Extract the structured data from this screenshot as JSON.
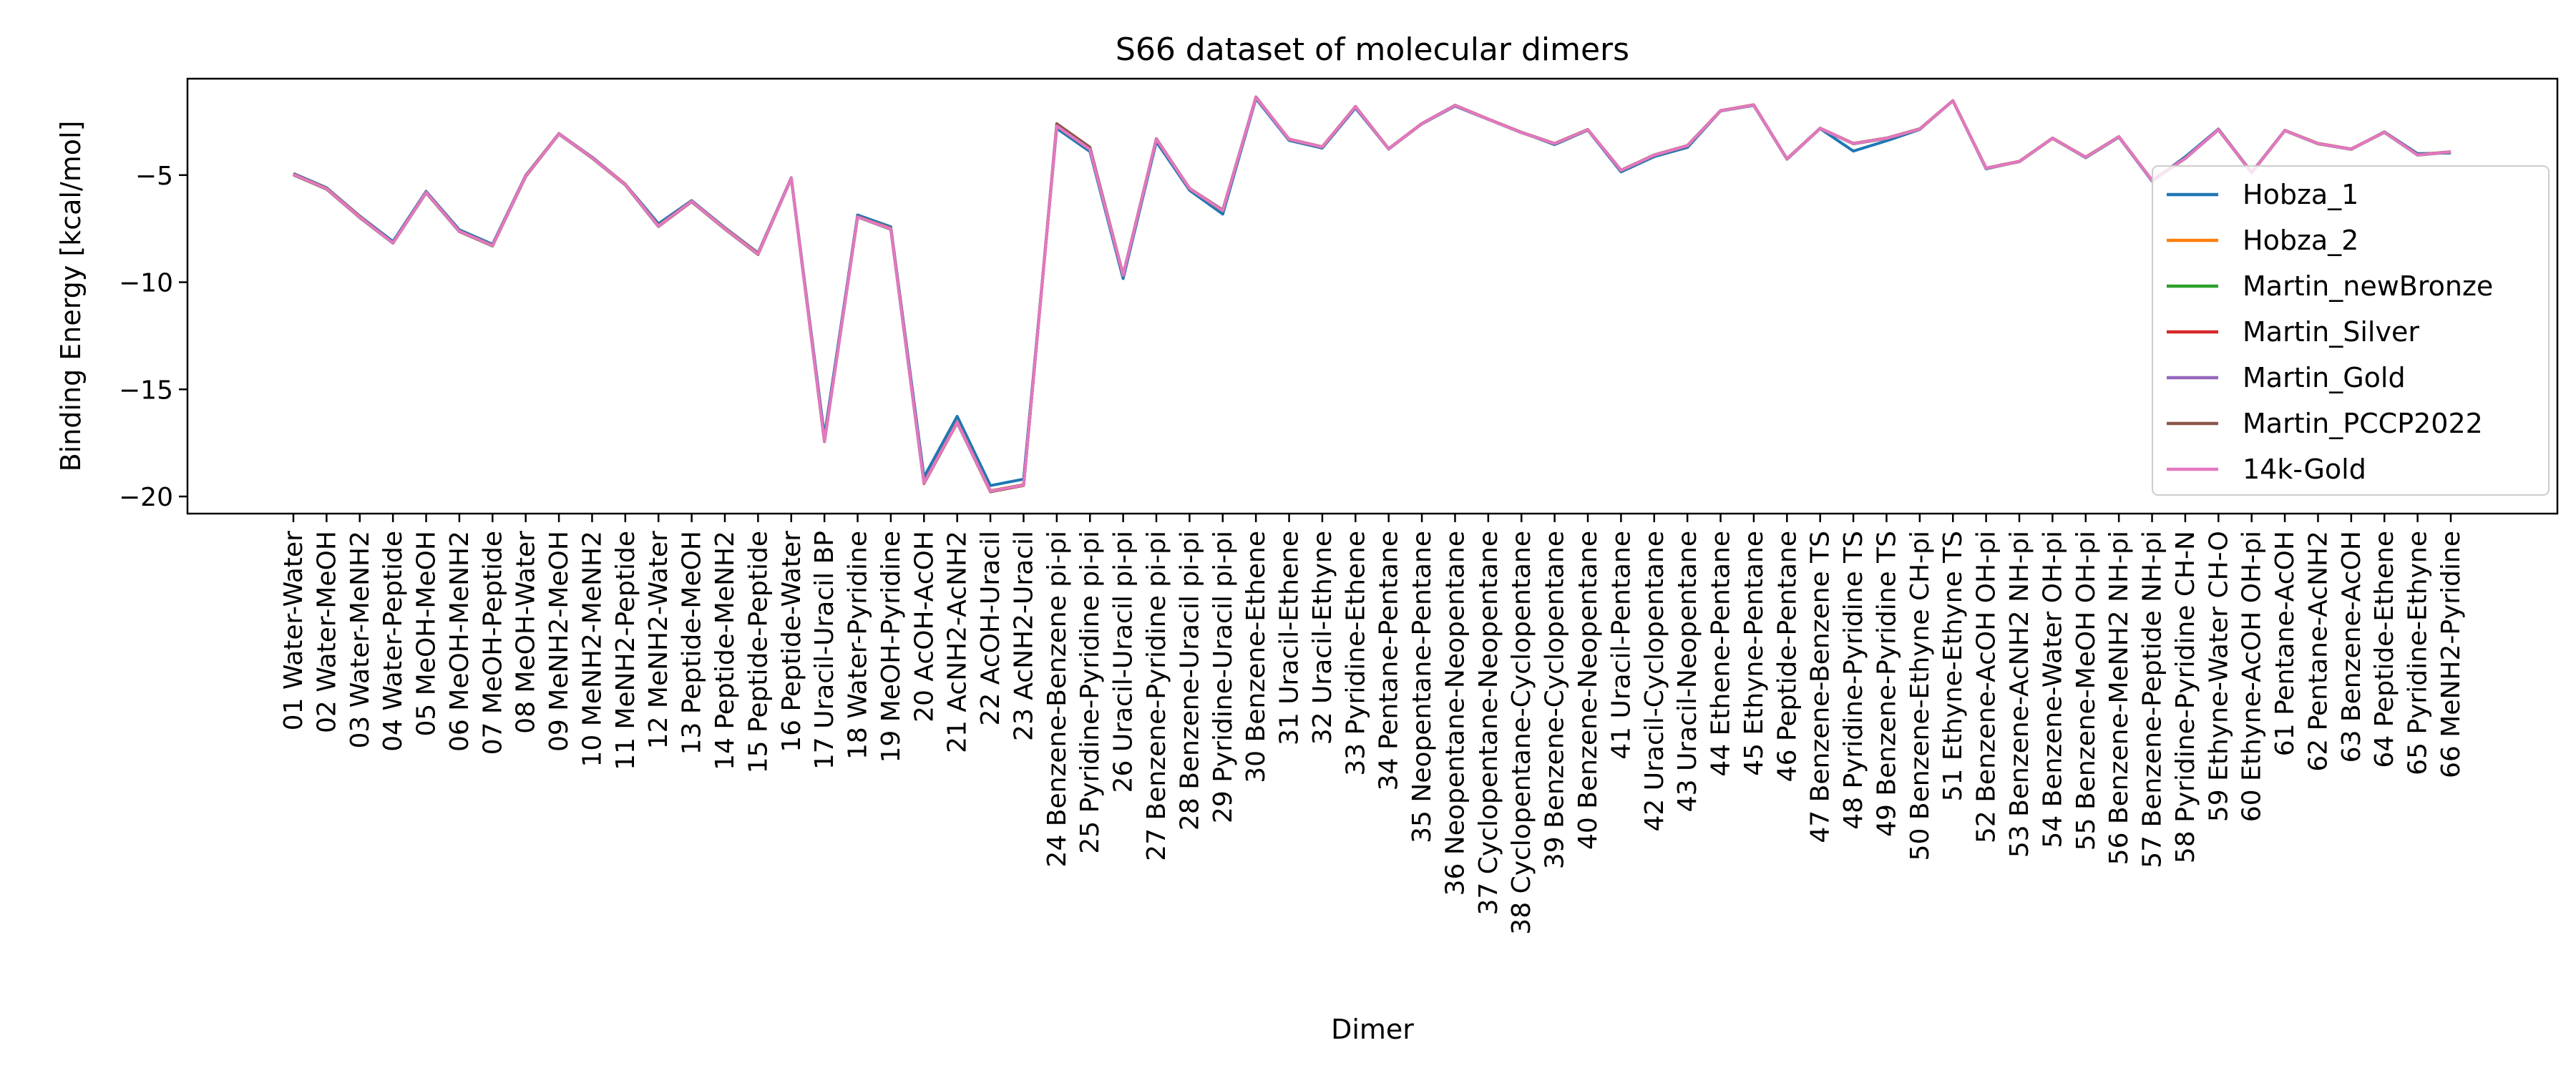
{
  "chart_data": {
    "type": "line",
    "title": "S66 dataset of molecular dimers",
    "xlabel": "Dimer",
    "ylabel": "Binding Energy [kcal/mol]",
    "ylim": [
      -20.8,
      -0.5
    ],
    "yticks": [
      -5,
      -10,
      -15,
      -20
    ],
    "legend_position": "right",
    "categories": [
      "01 Water-Water",
      "02 Water-MeOH",
      "03 Water-MeNH2",
      "04 Water-Peptide",
      "05 MeOH-MeOH",
      "06 MeOH-MeNH2",
      "07 MeOH-Peptide",
      "08 MeOH-Water",
      "09 MeNH2-MeOH",
      "10 MeNH2-MeNH2",
      "11 MeNH2-Peptide",
      "12 MeNH2-Water",
      "13 Peptide-MeOH",
      "14 Peptide-MeNH2",
      "15 Peptide-Peptide",
      "16 Peptide-Water",
      "17 Uracil-Uracil BP",
      "18 Water-Pyridine",
      "19 MeOH-Pyridine",
      "20 AcOH-AcOH",
      "21 AcNH2-AcNH2",
      "22 AcOH-Uracil",
      "23 AcNH2-Uracil",
      "24 Benzene-Benzene pi-pi",
      "25 Pyridine-Pyridine pi-pi",
      "26 Uracil-Uracil pi-pi",
      "27 Benzene-Pyridine pi-pi",
      "28 Benzene-Uracil pi-pi",
      "29 Pyridine-Uracil pi-pi",
      "30 Benzene-Ethene",
      "31 Uracil-Ethene",
      "32 Uracil-Ethyne",
      "33 Pyridine-Ethene",
      "34 Pentane-Pentane",
      "35 Neopentane-Pentane",
      "36 Neopentane-Neopentane",
      "37 Cyclopentane-Neopentane",
      "38 Cyclopentane-Cyclopentane",
      "39 Benzene-Cyclopentane",
      "40 Benzene-Neopentane",
      "41 Uracil-Pentane",
      "42 Uracil-Cyclopentane",
      "43 Uracil-Neopentane",
      "44 Ethene-Pentane",
      "45 Ethyne-Pentane",
      "46 Peptide-Pentane",
      "47 Benzene-Benzene TS",
      "48 Pyridine-Pyridine TS",
      "49 Benzene-Pyridine TS",
      "50 Benzene-Ethyne CH-pi",
      "51 Ethyne-Ethyne TS",
      "52 Benzene-AcOH OH-pi",
      "53 Benzene-AcNH2 NH-pi",
      "54 Benzene-Water OH-pi",
      "55 Benzene-MeOH OH-pi",
      "56 Benzene-MeNH2 NH-pi",
      "57 Benzene-Peptide NH-pi",
      "58 Pyridine-Pyridine CH-N",
      "59 Ethyne-Water CH-O",
      "60 Ethyne-AcOH OH-pi",
      "61 Pentane-AcOH",
      "62 Pentane-AcNH2",
      "63 Benzene-AcOH",
      "64 Peptide-Ethene",
      "65 Pyridine-Ethyne",
      "66 MeNH2-Pyridine"
    ],
    "series": [
      {
        "name": "Hobza_1",
        "color": "#1f77b4",
        "values": [
          -4.92,
          -5.59,
          -6.91,
          -8.1,
          -5.76,
          -7.55,
          -8.23,
          -5.01,
          -3.06,
          -4.16,
          -5.42,
          -7.27,
          -6.19,
          -7.45,
          -8.63,
          -5.12,
          -17.18,
          -6.86,
          -7.41,
          -19.09,
          -16.26,
          -19.49,
          -19.19,
          -2.82,
          -3.9,
          -9.83,
          -3.44,
          -5.71,
          -6.82,
          -1.43,
          -3.38,
          -3.74,
          -1.87,
          -3.78,
          -2.61,
          -1.78,
          -2.4,
          -3.0,
          -3.58,
          -2.9,
          -4.85,
          -4.14,
          -3.71,
          -2.01,
          -1.75,
          -4.26,
          -2.83,
          -3.88,
          -3.4,
          -2.87,
          -1.53,
          -4.71,
          -4.36,
          -3.28,
          -4.19,
          -3.23,
          -5.28,
          -4.15,
          -2.85,
          -4.87,
          -2.91,
          -3.53,
          -3.8,
          -2.98,
          -4.0,
          -3.97
        ]
      },
      {
        "name": "Hobza_2",
        "color": "#ff7f0e",
        "values": [
          -4.95,
          -5.62,
          -6.94,
          -8.16,
          -5.8,
          -7.61,
          -8.28,
          -5.03,
          -3.06,
          -4.18,
          -5.42,
          -7.36,
          -6.22,
          -7.48,
          -8.66,
          -5.13,
          -17.41,
          -6.94,
          -7.48,
          -19.35,
          -16.52,
          -19.73,
          -19.45,
          -2.7,
          -3.79,
          -9.66,
          -3.31,
          -5.62,
          -6.64,
          -1.36,
          -3.32,
          -3.68,
          -1.8,
          -3.77,
          -2.59,
          -1.74,
          -2.38,
          -3.0,
          -3.52,
          -2.87,
          -4.77,
          -4.06,
          -3.62,
          -1.99,
          -1.72,
          -4.24,
          -2.81,
          -3.52,
          -3.27,
          -2.84,
          -1.53,
          -4.67,
          -4.36,
          -3.27,
          -4.16,
          -3.2,
          -5.24,
          -4.21,
          -2.87,
          -4.88,
          -2.91,
          -3.52,
          -3.78,
          -2.99,
          -4.05,
          -3.91
        ]
      },
      {
        "name": "Martin_newBronze",
        "color": "#2ca02c",
        "values": [
          -4.99,
          -5.66,
          -6.99,
          -8.18,
          -5.83,
          -7.64,
          -8.31,
          -5.07,
          -3.09,
          -4.21,
          -5.46,
          -7.4,
          -6.25,
          -7.52,
          -8.71,
          -5.16,
          -17.44,
          -6.96,
          -7.53,
          -19.4,
          -16.56,
          -19.78,
          -19.49,
          -2.72,
          -3.81,
          -9.69,
          -3.33,
          -5.64,
          -6.67,
          -1.37,
          -3.34,
          -3.7,
          -1.82,
          -3.79,
          -2.61,
          -1.76,
          -2.4,
          -3.02,
          -3.54,
          -2.89,
          -4.79,
          -4.08,
          -3.64,
          -2.01,
          -1.74,
          -4.26,
          -2.83,
          -3.54,
          -3.29,
          -2.86,
          -1.54,
          -4.69,
          -4.38,
          -3.29,
          -4.18,
          -3.22,
          -5.26,
          -4.23,
          -2.89,
          -4.9,
          -2.93,
          -3.54,
          -3.8,
          -3.01,
          -4.07,
          -3.93
        ]
      },
      {
        "name": "Martin_Silver",
        "color": "#d62728",
        "values": [
          -4.98,
          -5.65,
          -6.98,
          -8.17,
          -5.82,
          -7.63,
          -8.3,
          -5.06,
          -3.08,
          -4.2,
          -5.45,
          -7.39,
          -6.24,
          -7.51,
          -8.7,
          -5.15,
          -17.43,
          -6.95,
          -7.52,
          -19.39,
          -16.55,
          -19.77,
          -19.48,
          -2.69,
          -3.78,
          -9.67,
          -3.31,
          -5.63,
          -6.65,
          -1.35,
          -3.33,
          -3.69,
          -1.81,
          -3.78,
          -2.6,
          -1.75,
          -2.39,
          -3.01,
          -3.53,
          -2.88,
          -4.78,
          -4.07,
          -3.63,
          -2.0,
          -1.73,
          -4.25,
          -2.82,
          -3.53,
          -3.28,
          -2.85,
          -1.53,
          -4.68,
          -4.37,
          -3.28,
          -4.17,
          -3.21,
          -5.25,
          -4.22,
          -2.88,
          -4.89,
          -2.92,
          -3.53,
          -3.79,
          -3.0,
          -4.06,
          -3.92
        ]
      },
      {
        "name": "Martin_Gold",
        "color": "#9467bd",
        "values": [
          -4.97,
          -5.64,
          -6.97,
          -8.17,
          -5.81,
          -7.62,
          -8.29,
          -5.05,
          -3.08,
          -4.19,
          -5.44,
          -7.38,
          -6.23,
          -7.5,
          -8.69,
          -5.14,
          -17.42,
          -6.95,
          -7.51,
          -19.37,
          -16.54,
          -19.75,
          -19.47,
          -2.71,
          -3.8,
          -9.68,
          -3.32,
          -5.63,
          -6.66,
          -1.37,
          -3.33,
          -3.69,
          -1.81,
          -3.78,
          -2.6,
          -1.75,
          -2.39,
          -3.01,
          -3.53,
          -2.88,
          -4.78,
          -4.07,
          -3.63,
          -2.0,
          -1.73,
          -4.25,
          -2.82,
          -3.53,
          -3.28,
          -2.85,
          -1.54,
          -4.68,
          -4.37,
          -3.28,
          -4.17,
          -3.21,
          -5.25,
          -4.22,
          -2.88,
          -4.89,
          -2.92,
          -3.53,
          -3.79,
          -3.0,
          -4.06,
          -3.92
        ]
      },
      {
        "name": "Martin_PCCP2022",
        "color": "#8c564b",
        "values": [
          -4.96,
          -5.63,
          -6.96,
          -8.16,
          -5.8,
          -7.61,
          -8.28,
          -5.04,
          -3.07,
          -4.18,
          -5.43,
          -7.37,
          -6.22,
          -7.49,
          -8.68,
          -5.13,
          -17.4,
          -6.94,
          -7.5,
          -19.36,
          -16.53,
          -19.74,
          -19.46,
          -2.6,
          -3.7,
          -9.65,
          -3.3,
          -5.62,
          -6.63,
          -1.36,
          -3.32,
          -3.68,
          -1.8,
          -3.77,
          -2.59,
          -1.74,
          -2.38,
          -3.0,
          -3.52,
          -2.87,
          -4.77,
          -4.06,
          -3.62,
          -1.99,
          -1.72,
          -4.24,
          -2.81,
          -3.52,
          -3.27,
          -2.84,
          -1.53,
          -4.67,
          -4.36,
          -3.27,
          -4.16,
          -3.2,
          -5.24,
          -4.21,
          -2.87,
          -4.88,
          -2.91,
          -3.52,
          -3.78,
          -2.99,
          -4.05,
          -3.91
        ]
      },
      {
        "name": "14k-Gold",
        "color": "#e377c2",
        "values": [
          -4.97,
          -5.64,
          -6.97,
          -8.17,
          -5.81,
          -7.62,
          -8.29,
          -5.05,
          -3.08,
          -4.19,
          -5.44,
          -7.38,
          -6.23,
          -7.5,
          -8.69,
          -5.14,
          -17.42,
          -6.95,
          -7.51,
          -19.37,
          -16.54,
          -19.75,
          -19.47,
          -2.71,
          -3.8,
          -9.68,
          -3.32,
          -5.63,
          -6.66,
          -1.37,
          -3.33,
          -3.69,
          -1.81,
          -3.78,
          -2.6,
          -1.75,
          -2.39,
          -3.01,
          -3.53,
          -2.88,
          -4.78,
          -4.07,
          -3.63,
          -2.0,
          -1.73,
          -4.25,
          -2.82,
          -3.53,
          -3.28,
          -2.85,
          -1.54,
          -4.68,
          -4.37,
          -3.28,
          -4.17,
          -3.21,
          -5.25,
          -4.22,
          -2.88,
          -4.89,
          -2.92,
          -3.53,
          -3.79,
          -3.0,
          -4.06,
          -3.92
        ]
      }
    ]
  }
}
